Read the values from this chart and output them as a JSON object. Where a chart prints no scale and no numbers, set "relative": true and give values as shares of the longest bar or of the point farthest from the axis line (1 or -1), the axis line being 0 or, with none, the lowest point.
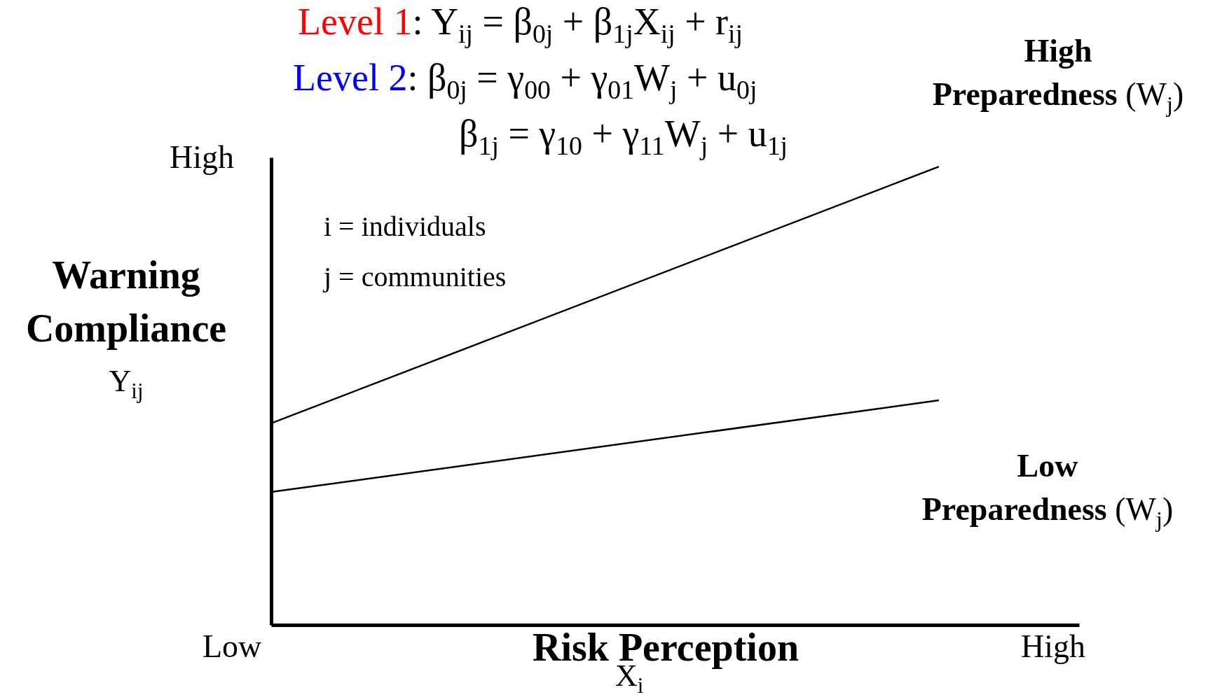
{
  "chart_data": {
    "type": "line",
    "title": "Level 1: Y$_{ij}$ = β$_{0j}$ + β$_{1j}$X$_{ij}$ + r$_{ij}$",
    "subtitle": "Level 2: β$_{0j}$ = γ$_{00}$ + γ$_{01}$W$_{j}$ + u$_{0j}$\nβ$_{1j}$ = γ$_{10}$ +  γ$_{11}$W$_{j}$ + u$_{1j}$",
    "xlabel": "Risk Perception X$_{i}$",
    "ylabel": "Warning Compliance Y$_{ij}$",
    "annotations": [
      "i = individuals",
      "j = communities",
      "High",
      "Low",
      "High"
    ],
    "categories": [
      null,
      null
    ],
    "relative": true,
    "legend": false,
    "marker": "none",
    "line_style": "solid",
    "series": [
      {
        "name": "High Preparedness (W$_{j}$)",
        "color": "#000000",
        "values": [
          0.44,
          1
        ]
      },
      {
        "name": "Low Preparedness (W$_{j}$)",
        "color": "#000000",
        "values": [
          0.29,
          0.49
        ]
      }
    ]
  }
}
